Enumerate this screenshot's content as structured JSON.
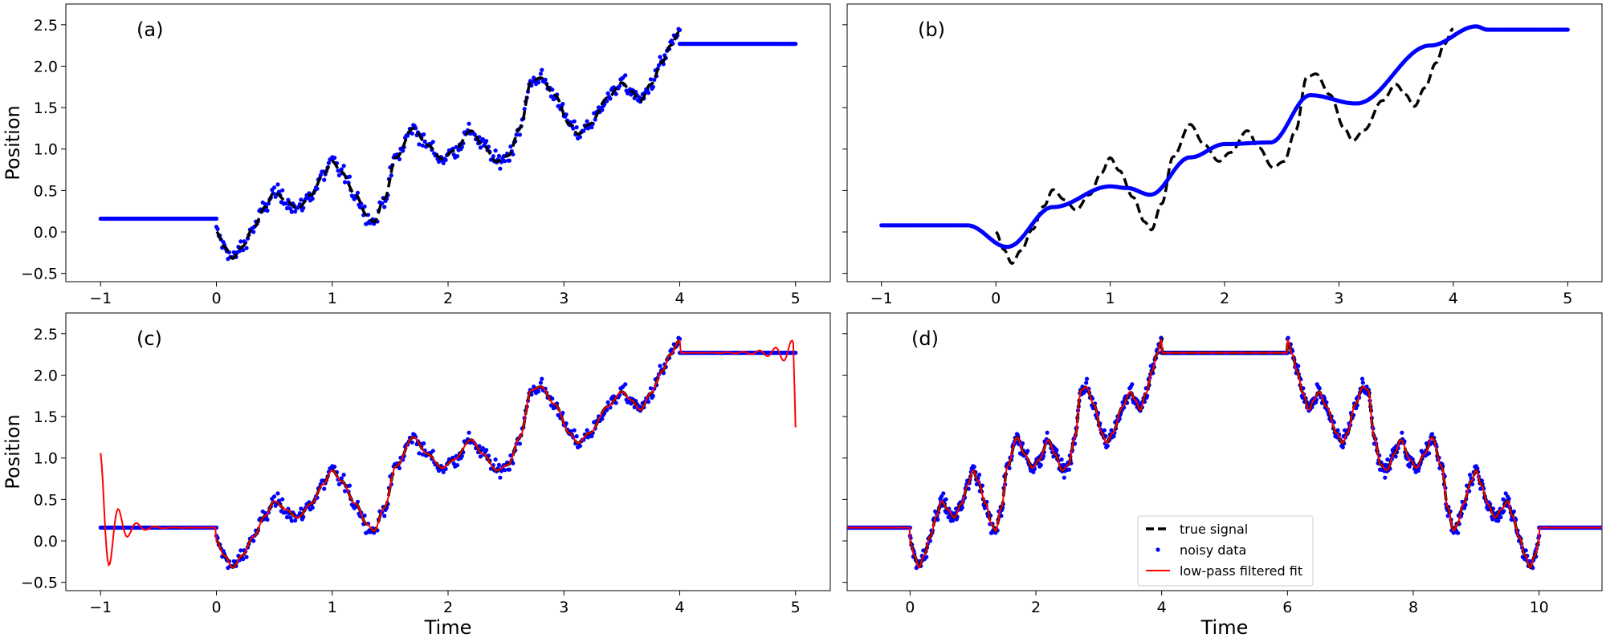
{
  "figure": {
    "colors": {
      "true_signal": "#000000",
      "noisy_data": "#0000ff",
      "fit": "#ff0000"
    }
  },
  "chart_data": [
    {
      "type": "line",
      "panel_label": "(a)",
      "xlabel": "",
      "ylabel": "Position",
      "xlim": [
        -1.3,
        5.3
      ],
      "ylim": [
        -0.6,
        2.75
      ],
      "xticks": [
        -1,
        0,
        1,
        2,
        3,
        4,
        5
      ],
      "yticks": [
        -0.5,
        0.0,
        0.5,
        1.0,
        1.5,
        2.0,
        2.5
      ],
      "grid": false,
      "series": [
        {
          "role": "true_signal",
          "style": "dashed",
          "x_range": [
            0,
            4
          ],
          "approx_points": [
            [
              0,
              0.0
            ],
            [
              0.14,
              -0.3
            ],
            [
              0.5,
              0.5
            ],
            [
              0.7,
              0.3
            ],
            [
              1.0,
              0.85
            ],
            [
              1.35,
              0.12
            ],
            [
              1.7,
              1.25
            ],
            [
              2.0,
              0.85
            ],
            [
              2.2,
              1.2
            ],
            [
              2.45,
              0.85
            ],
            [
              2.75,
              1.85
            ],
            [
              3.1,
              1.2
            ],
            [
              3.5,
              1.8
            ],
            [
              3.65,
              1.6
            ],
            [
              4.0,
              2.45
            ]
          ]
        },
        {
          "role": "noisy_data",
          "style": "points",
          "x_range": [
            0,
            4
          ]
        },
        {
          "role": "noisy_data",
          "style": "points",
          "segments": [
            {
              "x_range": [
                -1,
                0
              ],
              "y": 0.16
            },
            {
              "x_range": [
                4,
                5
              ],
              "y": 2.27
            }
          ]
        }
      ]
    },
    {
      "type": "line",
      "panel_label": "(b)",
      "xlabel": "",
      "ylabel": "",
      "xlim": [
        -1.3,
        5.3
      ],
      "ylim": [
        -0.6,
        2.75
      ],
      "xticks": [
        -1,
        0,
        1,
        2,
        3,
        4,
        5
      ],
      "yticks": [
        -0.5,
        0.0,
        0.5,
        1.0,
        1.5,
        2.0,
        2.5
      ],
      "grid": false,
      "series": [
        {
          "role": "true_signal",
          "style": "dashed",
          "x_range": [
            0,
            4
          ]
        },
        {
          "role": "noisy_data",
          "style": "points",
          "description_points": [
            [
              -1,
              0.08
            ],
            [
              -0.25,
              0.08
            ],
            [
              0.1,
              -0.18
            ],
            [
              0.5,
              0.3
            ],
            [
              1.0,
              0.55
            ],
            [
              1.15,
              0.53
            ],
            [
              1.35,
              0.45
            ],
            [
              1.7,
              0.9
            ],
            [
              2.0,
              1.06
            ],
            [
              2.4,
              1.08
            ],
            [
              2.75,
              1.65
            ],
            [
              3.15,
              1.55
            ],
            [
              3.8,
              2.25
            ],
            [
              4.2,
              2.48
            ],
            [
              4.3,
              2.44
            ],
            [
              5.0,
              2.44
            ]
          ]
        }
      ]
    },
    {
      "type": "line",
      "panel_label": "(c)",
      "xlabel": "Time",
      "ylabel": "Position",
      "xlim": [
        -1.3,
        5.3
      ],
      "ylim": [
        -0.6,
        2.75
      ],
      "xticks": [
        -1,
        0,
        1,
        2,
        3,
        4,
        5
      ],
      "yticks": [
        -0.5,
        0.0,
        0.5,
        1.0,
        1.5,
        2.0,
        2.5
      ],
      "grid": false,
      "series": [
        {
          "role": "true_signal",
          "style": "dashed",
          "x_range": [
            0,
            4
          ]
        },
        {
          "role": "noisy_data",
          "style": "points",
          "x_range": [
            -1,
            5
          ]
        },
        {
          "role": "fit",
          "style": "solid",
          "x_range": [
            -1,
            5
          ],
          "endpoints": [
            [
              -1,
              1.04
            ],
            [
              5,
              1.38
            ]
          ]
        }
      ]
    },
    {
      "type": "line",
      "panel_label": "(d)",
      "xlabel": "Time",
      "ylabel": "",
      "xlim": [
        -1.0,
        11.0
      ],
      "ylim": [
        -0.6,
        2.75
      ],
      "xticks": [
        0,
        2,
        4,
        6,
        8,
        10
      ],
      "yticks": [
        -0.5,
        0.0,
        0.5,
        1.0,
        1.5,
        2.0,
        2.5
      ],
      "grid": false,
      "legend": {
        "placement": "lower-center",
        "entries": [
          "true signal",
          "noisy data",
          "low-pass filtered fit"
        ]
      },
      "series": [
        {
          "name": "true signal",
          "role": "true_signal",
          "style": "dashed",
          "x_range": [
            0,
            10
          ]
        },
        {
          "name": "noisy data",
          "role": "noisy_data",
          "style": "points",
          "x_range": [
            -1,
            11
          ]
        },
        {
          "name": "low-pass filtered fit",
          "role": "fit",
          "style": "solid",
          "x_range": [
            -1,
            11
          ]
        }
      ]
    }
  ]
}
